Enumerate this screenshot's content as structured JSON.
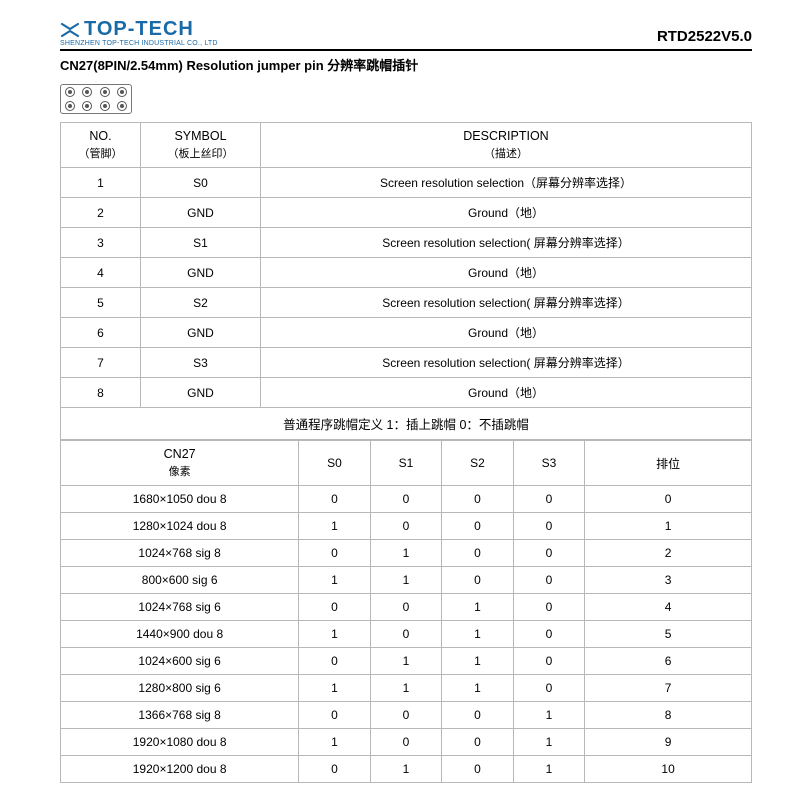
{
  "header": {
    "logo_text": "TOP-TECH",
    "logo_sub": "SHENZHEN TOP-TECH INDUSTRIAL CO., LTD",
    "doc_code": "RTD2522V5.0",
    "logo_color": "#1a6aa8"
  },
  "section_title": "CN27(8PIN/2.54mm) Resolution jumper pin 分辨率跳帽插针",
  "pin_table": {
    "headers": {
      "no": "NO.",
      "no_sub": "（管脚）",
      "symbol": "SYMBOL",
      "symbol_sub": "（板上丝印）",
      "desc": "DESCRIPTION",
      "desc_sub": "（描述）"
    },
    "rows": [
      {
        "no": "1",
        "symbol": "S0",
        "desc": "Screen resolution selection（屏幕分辨率选择）"
      },
      {
        "no": "2",
        "symbol": "GND",
        "desc": "Ground（地）"
      },
      {
        "no": "3",
        "symbol": "S1",
        "desc": "Screen resolution selection( 屏幕分辨率选择）"
      },
      {
        "no": "4",
        "symbol": "GND",
        "desc": "Ground（地）"
      },
      {
        "no": "5",
        "symbol": "S2",
        "desc": "Screen resolution selection( 屏幕分辨率选择）"
      },
      {
        "no": "6",
        "symbol": "GND",
        "desc": "Ground（地）"
      },
      {
        "no": "7",
        "symbol": "S3",
        "desc": "Screen resolution selection( 屏幕分辨率选择）"
      },
      {
        "no": "8",
        "symbol": "GND",
        "desc": "Ground（地）"
      }
    ]
  },
  "jumper_table": {
    "caption": "普通程序跳帽定义 1：插上跳帽 0：不插跳帽",
    "headers": {
      "cn27": "CN27",
      "cn27_sub": "像素",
      "s0": "S0",
      "s1": "S1",
      "s2": "S2",
      "s3": "S3",
      "rank": "排位"
    },
    "rows": [
      {
        "res": "1680×1050 dou 8",
        "s0": "0",
        "s1": "0",
        "s2": "0",
        "s3": "0",
        "rank": "0"
      },
      {
        "res": "1280×1024 dou 8",
        "s0": "1",
        "s1": "0",
        "s2": "0",
        "s3": "0",
        "rank": "1"
      },
      {
        "res": "1024×768 sig 8",
        "s0": "0",
        "s1": "1",
        "s2": "0",
        "s3": "0",
        "rank": "2"
      },
      {
        "res": "800×600 sig 6",
        "s0": "1",
        "s1": "1",
        "s2": "0",
        "s3": "0",
        "rank": "3"
      },
      {
        "res": "1024×768 sig 6",
        "s0": "0",
        "s1": "0",
        "s2": "1",
        "s3": "0",
        "rank": "4"
      },
      {
        "res": "1440×900 dou 8",
        "s0": "1",
        "s1": "0",
        "s2": "1",
        "s3": "0",
        "rank": "5"
      },
      {
        "res": "1024×600 sig 6",
        "s0": "0",
        "s1": "1",
        "s2": "1",
        "s3": "0",
        "rank": "6"
      },
      {
        "res": "1280×800 sig 6",
        "s0": "1",
        "s1": "1",
        "s2": "1",
        "s3": "0",
        "rank": "7"
      },
      {
        "res": "1366×768 sig 8",
        "s0": "0",
        "s1": "0",
        "s2": "0",
        "s3": "1",
        "rank": "8"
      },
      {
        "res": "1920×1080 dou 8",
        "s0": "1",
        "s1": "0",
        "s2": "0",
        "s3": "1",
        "rank": "9"
      },
      {
        "res": "1920×1200 dou 8",
        "s0": "0",
        "s1": "1",
        "s2": "0",
        "s3": "1",
        "rank": "10"
      }
    ]
  },
  "style": {
    "border_color": "#b8b8b8",
    "text_color": "#000000",
    "background": "#ffffff",
    "font_size_body": 12,
    "font_size_title": 13
  }
}
